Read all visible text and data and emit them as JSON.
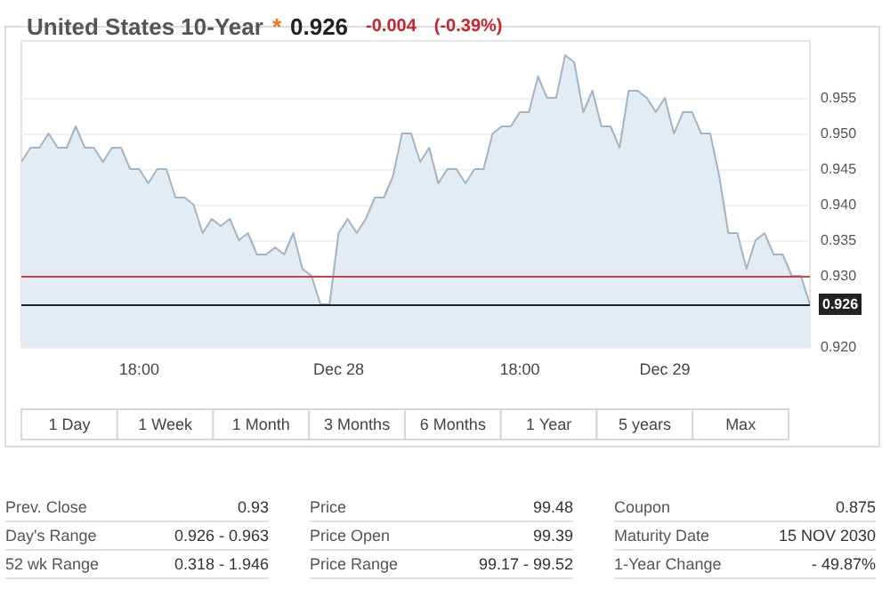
{
  "chart_data": {
    "type": "area",
    "title": "United States 10-Year",
    "annotations": [
      "*",
      "0.926",
      "-0.004",
      "(-0.39%)",
      "1 Day",
      "1 Week",
      "1 Month",
      "3 Months",
      "6 Months",
      "1 Year",
      "5 years",
      "Max",
      "Prev. Close",
      "0.93",
      "Price",
      "99.48",
      "Coupon",
      "0.875",
      "Day's Range",
      "0.926 - 0.963",
      "Price Open",
      "99.39",
      "Maturity Date",
      "15 NOV 2030",
      "52 wk Range",
      "0.318 - 1.946",
      "Price Range",
      "99.17 - 99.52",
      "1-Year Change",
      "- 49.87%"
    ],
    "categories": [
      null,
      null,
      null,
      null,
      null,
      null,
      null,
      null,
      null,
      null,
      null,
      null,
      null,
      "18:00",
      null,
      null,
      null,
      null,
      null,
      null,
      null,
      null,
      null,
      null,
      null,
      null,
      null,
      null,
      null,
      null,
      null,
      null,
      null,
      null,
      null,
      "Dec 28",
      null,
      null,
      null,
      null,
      null,
      null,
      null,
      null,
      null,
      null,
      null,
      null,
      null,
      null,
      null,
      null,
      null,
      null,
      null,
      "18:00",
      null,
      null,
      null,
      null,
      null,
      null,
      null,
      null,
      null,
      null,
      null,
      null,
      null,
      null,
      null,
      "Dec 29",
      null,
      null,
      null,
      null,
      null,
      null,
      null,
      null,
      null,
      null,
      null,
      null,
      null,
      null,
      null,
      null
    ],
    "series": [
      {
        "color": "#9fb6c9",
        "values": [
          0.946,
          0.948,
          0.948,
          0.95,
          0.948,
          0.948,
          0.951,
          0.948,
          0.948,
          0.946,
          0.948,
          0.948,
          0.945,
          0.945,
          0.943,
          0.945,
          0.945,
          0.941,
          0.941,
          0.94,
          0.936,
          0.938,
          0.937,
          0.938,
          0.935,
          0.936,
          0.933,
          0.933,
          0.934,
          0.933,
          0.936,
          0.931,
          0.93,
          0.926,
          0.926,
          0.936,
          0.938,
          0.936,
          0.938,
          0.941,
          0.941,
          0.944,
          0.95,
          0.95,
          0.946,
          0.948,
          0.943,
          0.945,
          0.945,
          0.943,
          0.945,
          0.945,
          0.95,
          0.951,
          0.951,
          0.953,
          0.953,
          0.958,
          0.955,
          0.955,
          0.961,
          0.96,
          0.953,
          0.956,
          0.951,
          0.951,
          0.948,
          0.956,
          0.956,
          0.955,
          0.953,
          0.955,
          0.95,
          0.953,
          0.953,
          0.95,
          0.95,
          0.944,
          0.936,
          0.936,
          0.931,
          0.935,
          0.936,
          0.933,
          0.933,
          0.93,
          0.93,
          0.926
        ]
      }
    ],
    "ylim": [
      0.92,
      0.963
    ],
    "yticks": [
      {
        "value": 0.92,
        "label": "0.920"
      },
      {
        "value": 0.93,
        "label": "0.930"
      },
      {
        "value": 0.935,
        "label": "0.935"
      },
      {
        "value": 0.94,
        "label": "0.940"
      },
      {
        "value": 0.945,
        "label": "0.945"
      },
      {
        "value": 0.95,
        "label": "0.950"
      },
      {
        "value": 0.955,
        "label": "0.955"
      }
    ],
    "ref_lines": [
      {
        "axis": "y",
        "value": 0.93,
        "color": "#c9424a"
      },
      {
        "axis": "y",
        "value": 0.926,
        "label": "0.926",
        "color": "#222222"
      }
    ],
    "grid": "y",
    "marker": "none",
    "line_style": "solid"
  }
}
